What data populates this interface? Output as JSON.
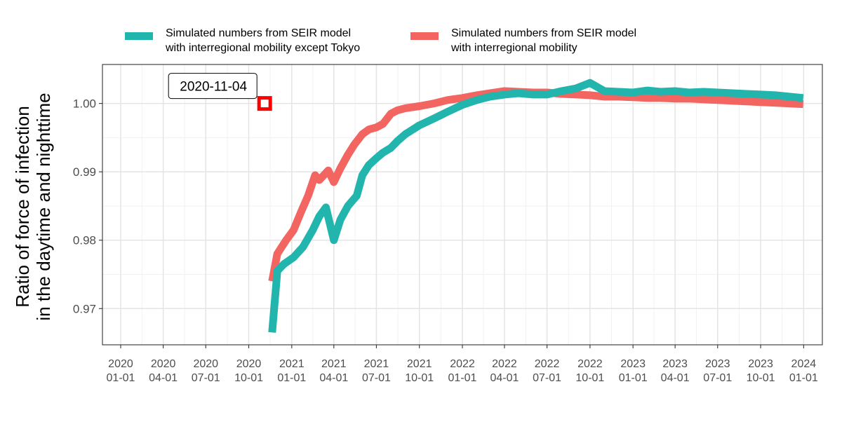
{
  "chart_data": {
    "type": "line",
    "title": "",
    "xlabel": "",
    "ylabel_lines": [
      "Ratio of force of infection",
      "in the daytime and nighttime"
    ],
    "xlim": [
      "2019-11-23",
      "2024-02-10"
    ],
    "ylim": [
      0.9647,
      1.0057
    ],
    "grid": true,
    "legend_position": "top",
    "y_ticks": [
      {
        "value": 0.97,
        "label": "0.97"
      },
      {
        "value": 0.98,
        "label": "0.98"
      },
      {
        "value": 0.99,
        "label": "0.99"
      },
      {
        "value": 1.0,
        "label": "1.00"
      }
    ],
    "x_ticks": [
      {
        "date": "2020-01-01",
        "year": "2020",
        "md": "01-01"
      },
      {
        "date": "2020-04-01",
        "year": "2020",
        "md": "04-01"
      },
      {
        "date": "2020-07-01",
        "year": "2020",
        "md": "07-01"
      },
      {
        "date": "2020-10-01",
        "year": "2020",
        "md": "10-01"
      },
      {
        "date": "2021-01-01",
        "year": "2021",
        "md": "01-01"
      },
      {
        "date": "2021-04-01",
        "year": "2021",
        "md": "04-01"
      },
      {
        "date": "2021-07-01",
        "year": "2021",
        "md": "07-01"
      },
      {
        "date": "2021-10-01",
        "year": "2021",
        "md": "10-01"
      },
      {
        "date": "2022-01-01",
        "year": "2022",
        "md": "01-01"
      },
      {
        "date": "2022-04-01",
        "year": "2022",
        "md": "04-01"
      },
      {
        "date": "2022-07-01",
        "year": "2022",
        "md": "07-01"
      },
      {
        "date": "2022-10-01",
        "year": "2022",
        "md": "10-01"
      },
      {
        "date": "2023-01-01",
        "year": "2023",
        "md": "01-01"
      },
      {
        "date": "2023-04-01",
        "year": "2023",
        "md": "04-01"
      },
      {
        "date": "2023-07-01",
        "year": "2023",
        "md": "07-01"
      },
      {
        "date": "2023-10-01",
        "year": "2023",
        "md": "10-01"
      },
      {
        "date": "2024-01-01",
        "year": "2024",
        "md": "01-01"
      }
    ],
    "series": [
      {
        "name": "Simulated numbers from SEIR model\nwith interregional mobility except Tokyo",
        "color": "#22b5ad",
        "x": [
          "2020-11-20",
          "2020-11-28",
          "2020-12-01",
          "2020-12-15",
          "2021-01-05",
          "2021-01-25",
          "2021-02-15",
          "2021-03-01",
          "2021-03-15",
          "2021-04-01",
          "2021-04-15",
          "2021-05-01",
          "2021-05-20",
          "2021-06-01",
          "2021-06-15",
          "2021-07-01",
          "2021-07-15",
          "2021-08-01",
          "2021-08-15",
          "2021-09-01",
          "2021-10-01",
          "2021-11-01",
          "2021-12-01",
          "2022-01-01",
          "2022-02-01",
          "2022-03-01",
          "2022-04-01",
          "2022-05-01",
          "2022-06-01",
          "2022-07-01",
          "2022-08-01",
          "2022-09-01",
          "2022-10-01",
          "2022-11-01",
          "2022-12-01",
          "2023-01-01",
          "2023-02-01",
          "2023-03-01",
          "2023-04-01",
          "2023-05-01",
          "2023-06-01",
          "2023-07-01",
          "2023-08-01",
          "2023-09-01",
          "2023-10-01",
          "2023-11-01",
          "2023-12-01",
          "2023-12-31"
        ],
        "values": [
          0.9665,
          0.973,
          0.9755,
          0.9765,
          0.9775,
          0.979,
          0.9815,
          0.9835,
          0.9848,
          0.98,
          0.983,
          0.985,
          0.9865,
          0.9895,
          0.991,
          0.992,
          0.9928,
          0.9935,
          0.9945,
          0.9955,
          0.9968,
          0.9978,
          0.9988,
          0.9998,
          1.0005,
          1.001,
          1.0013,
          1.0015,
          1.0013,
          1.0013,
          1.0018,
          1.0022,
          1.003,
          1.0018,
          1.0017,
          1.0016,
          1.0019,
          1.0017,
          1.0018,
          1.0016,
          1.0017,
          1.0016,
          1.0015,
          1.0014,
          1.0013,
          1.0012,
          1.001,
          1.0008
        ]
      },
      {
        "name": "Simulated numbers from SEIR model\nwith interregional mobility",
        "color": "#f26561",
        "x": [
          "2020-11-20",
          "2020-12-01",
          "2020-12-20",
          "2021-01-05",
          "2021-01-20",
          "2021-02-05",
          "2021-02-20",
          "2021-03-01",
          "2021-03-20",
          "2021-04-01",
          "2021-04-15",
          "2021-05-01",
          "2021-05-15",
          "2021-06-01",
          "2021-06-15",
          "2021-07-01",
          "2021-07-15",
          "2021-08-01",
          "2021-08-15",
          "2021-09-01",
          "2021-10-01",
          "2021-11-01",
          "2021-12-01",
          "2022-01-01",
          "2022-02-01",
          "2022-03-01",
          "2022-04-01",
          "2022-05-01",
          "2022-06-01",
          "2022-07-01",
          "2022-08-01",
          "2022-09-01",
          "2022-10-01",
          "2022-11-01",
          "2022-12-01",
          "2023-01-01",
          "2023-02-01",
          "2023-03-01",
          "2023-04-01",
          "2023-05-01",
          "2023-06-01",
          "2023-07-01",
          "2023-08-01",
          "2023-09-01",
          "2023-10-01",
          "2023-11-01",
          "2023-12-01",
          "2023-12-31"
        ],
        "values": [
          0.974,
          0.978,
          0.98,
          0.9815,
          0.984,
          0.9865,
          0.9895,
          0.9888,
          0.9902,
          0.9885,
          0.9905,
          0.9925,
          0.994,
          0.9955,
          0.9962,
          0.9965,
          0.997,
          0.9985,
          0.999,
          0.9993,
          0.9996,
          1.0,
          1.0005,
          1.0008,
          1.0012,
          1.0015,
          1.0018,
          1.0017,
          1.0016,
          1.0016,
          1.0014,
          1.0013,
          1.0012,
          1.001,
          1.001,
          1.0009,
          1.0008,
          1.0008,
          1.0007,
          1.0007,
          1.0006,
          1.0005,
          1.0004,
          1.0003,
          1.0002,
          1.0001,
          1.0,
          0.9999
        ]
      }
    ],
    "annotations": [
      {
        "text": "2020-11-04",
        "x": "2020-11-04",
        "y": 1.0,
        "marker_color": "#ff0000"
      }
    ]
  }
}
